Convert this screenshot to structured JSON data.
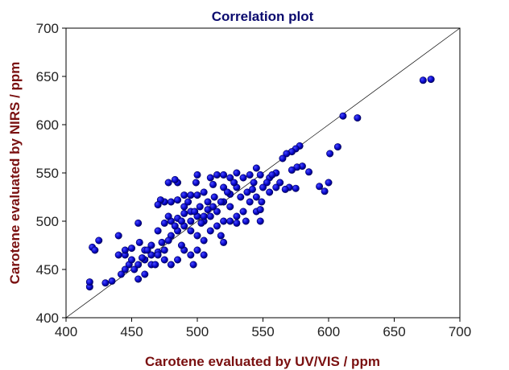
{
  "chart_data": {
    "type": "scatter",
    "title": "Correlation plot",
    "xlabel": "Carotene evaluated by UV/VIS / ppm",
    "ylabel": "Carotene evaluated by NIRS / ppm",
    "xlim": [
      400,
      700
    ],
    "ylim": [
      400,
      700
    ],
    "xticks": [
      "400",
      "450",
      "500",
      "550",
      "600",
      "650",
      "700"
    ],
    "yticks": [
      "400",
      "450",
      "500",
      "550",
      "600",
      "650",
      "700"
    ],
    "grid": false,
    "reference_line": "y = x",
    "marker_color": "#0a0ad0",
    "points": [
      [
        672,
        646
      ],
      [
        678,
        647
      ],
      [
        611,
        609
      ],
      [
        622,
        607
      ],
      [
        607,
        577
      ],
      [
        601,
        570
      ],
      [
        593,
        536
      ],
      [
        597,
        531
      ],
      [
        600,
        540
      ],
      [
        585,
        551
      ],
      [
        578,
        578
      ],
      [
        575,
        575
      ],
      [
        572,
        572
      ],
      [
        568,
        570
      ],
      [
        565,
        565
      ],
      [
        580,
        557
      ],
      [
        576,
        556
      ],
      [
        572,
        553
      ],
      [
        560,
        550
      ],
      [
        555,
        545
      ],
      [
        570,
        535
      ],
      [
        567,
        533
      ],
      [
        575,
        534
      ],
      [
        560,
        535
      ],
      [
        553,
        540
      ],
      [
        548,
        548
      ],
      [
        545,
        555
      ],
      [
        540,
        548
      ],
      [
        535,
        545
      ],
      [
        530,
        550
      ],
      [
        525,
        545
      ],
      [
        520,
        548
      ],
      [
        515,
        548
      ],
      [
        510,
        545
      ],
      [
        500,
        548
      ],
      [
        499,
        540
      ],
      [
        500,
        527
      ],
      [
        495,
        527
      ],
      [
        490,
        527
      ],
      [
        485,
        540
      ],
      [
        483,
        543
      ],
      [
        478,
        540
      ],
      [
        475,
        520
      ],
      [
        472,
        522
      ],
      [
        470,
        517
      ],
      [
        480,
        520
      ],
      [
        485,
        522
      ],
      [
        490,
        515
      ],
      [
        495,
        510
      ],
      [
        500,
        505
      ],
      [
        505,
        500
      ],
      [
        510,
        505
      ],
      [
        515,
        510
      ],
      [
        520,
        520
      ],
      [
        525,
        515
      ],
      [
        530,
        505
      ],
      [
        535,
        510
      ],
      [
        540,
        520
      ],
      [
        545,
        510
      ],
      [
        548,
        512
      ],
      [
        545,
        525
      ],
      [
        550,
        535
      ],
      [
        555,
        530
      ],
      [
        538,
        530
      ],
      [
        530,
        535
      ],
      [
        525,
        528
      ],
      [
        520,
        535
      ],
      [
        512,
        538
      ],
      [
        505,
        530
      ],
      [
        508,
        520
      ],
      [
        502,
        515
      ],
      [
        495,
        500
      ],
      [
        490,
        495
      ],
      [
        485,
        490
      ],
      [
        480,
        485
      ],
      [
        478,
        480
      ],
      [
        475,
        470
      ],
      [
        470,
        468
      ],
      [
        465,
        465
      ],
      [
        460,
        460
      ],
      [
        455,
        455
      ],
      [
        452,
        450
      ],
      [
        448,
        455
      ],
      [
        445,
        465
      ],
      [
        440,
        465
      ],
      [
        440,
        485
      ],
      [
        455,
        498
      ],
      [
        456,
        478
      ],
      [
        460,
        470
      ],
      [
        465,
        475
      ],
      [
        470,
        490
      ],
      [
        475,
        498
      ],
      [
        480,
        500
      ],
      [
        485,
        503
      ],
      [
        490,
        508
      ],
      [
        495,
        490
      ],
      [
        500,
        485
      ],
      [
        505,
        480
      ],
      [
        510,
        490
      ],
      [
        515,
        495
      ],
      [
        520,
        500
      ],
      [
        525,
        500
      ],
      [
        530,
        498
      ],
      [
        520,
        478
      ],
      [
        518,
        485
      ],
      [
        505,
        465
      ],
      [
        500,
        470
      ],
      [
        495,
        465
      ],
      [
        490,
        470
      ],
      [
        485,
        460
      ],
      [
        480,
        455
      ],
      [
        475,
        460
      ],
      [
        470,
        465
      ],
      [
        465,
        455
      ],
      [
        460,
        445
      ],
      [
        455,
        440
      ],
      [
        450,
        460
      ],
      [
        445,
        450
      ],
      [
        442,
        445
      ],
      [
        435,
        438
      ],
      [
        430,
        436
      ],
      [
        418,
        432
      ],
      [
        418,
        437
      ],
      [
        420,
        473
      ],
      [
        422,
        470
      ],
      [
        425,
        480
      ],
      [
        468,
        455
      ],
      [
        488,
        475
      ],
      [
        497,
        455
      ],
      [
        505,
        505
      ],
      [
        512,
        515
      ],
      [
        518,
        520
      ],
      [
        528,
        540
      ],
      [
        533,
        525
      ],
      [
        543,
        540
      ],
      [
        548,
        500
      ],
      [
        549,
        520
      ],
      [
        462,
        470
      ],
      [
        473,
        478
      ],
      [
        483,
        495
      ],
      [
        493,
        520
      ],
      [
        503,
        498
      ],
      [
        513,
        525
      ],
      [
        523,
        530
      ],
      [
        537,
        500
      ],
      [
        542,
        533
      ],
      [
        557,
        548
      ],
      [
        563,
        540
      ],
      [
        445,
        470
      ],
      [
        450,
        472
      ],
      [
        458,
        462
      ],
      [
        478,
        505
      ],
      [
        488,
        500
      ],
      [
        498,
        510
      ],
      [
        508,
        512
      ]
    ]
  }
}
